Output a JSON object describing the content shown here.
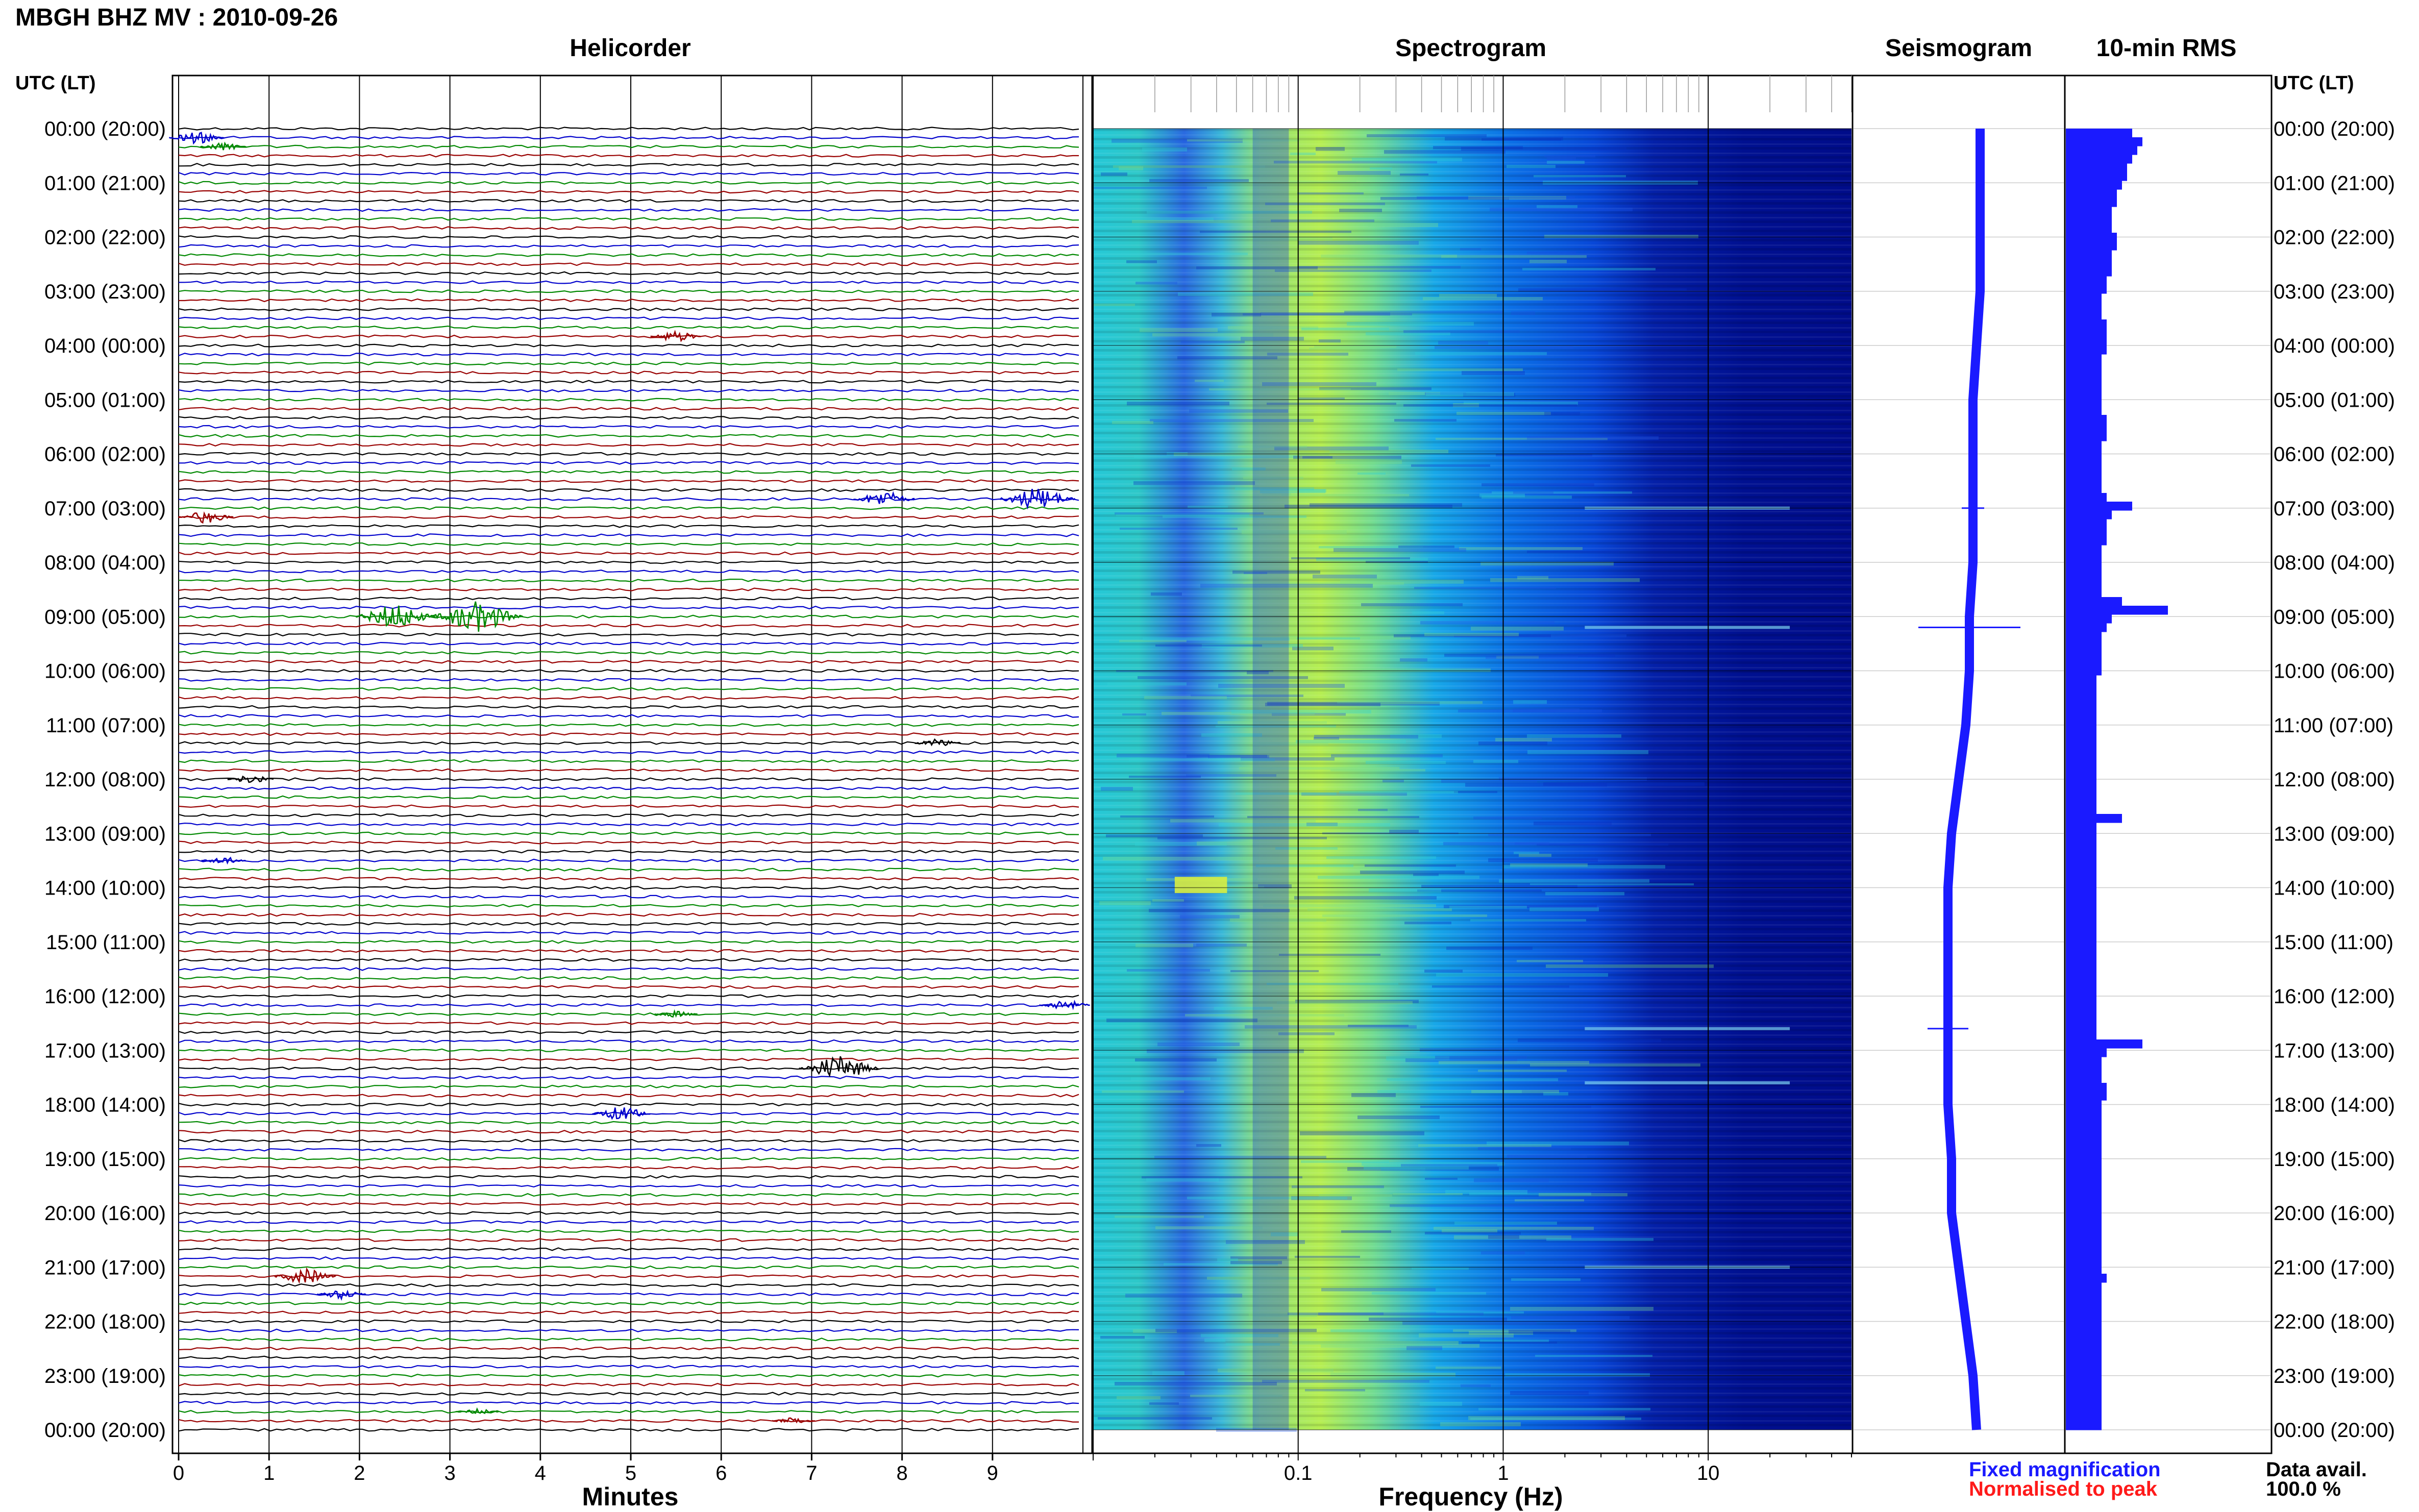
{
  "header": {
    "title": "MBGH BHZ MV : 2010-09-26",
    "utc_label": "UTC (LT)"
  },
  "panels": {
    "helicorder": "Helicorder",
    "spectrogram": "Spectrogram",
    "seismogram": "Seismogram",
    "rms": "10-min RMS"
  },
  "time_labels": [
    "00:00 (20:00)",
    "01:00 (21:00)",
    "02:00 (22:00)",
    "03:00 (23:00)",
    "04:00 (00:00)",
    "05:00 (01:00)",
    "06:00 (02:00)",
    "07:00 (03:00)",
    "08:00 (04:00)",
    "09:00 (05:00)",
    "10:00 (06:00)",
    "11:00 (07:00)",
    "12:00 (08:00)",
    "13:00 (09:00)",
    "14:00 (10:00)",
    "15:00 (11:00)",
    "16:00 (12:00)",
    "17:00 (13:00)",
    "18:00 (14:00)",
    "19:00 (15:00)",
    "20:00 (16:00)",
    "21:00 (17:00)",
    "22:00 (18:00)",
    "23:00 (19:00)",
    "00:00 (20:00)"
  ],
  "legend": {
    "fixed": "Fixed magnification",
    "normalised": "Normalised to peak",
    "fixed_color": "#1a1aff",
    "normalised_color": "#ff1a1a"
  },
  "data_avail": {
    "label": "Data avail.",
    "value": "100.0 %"
  },
  "chart_data": {
    "type": "helicorder+spectrogram",
    "helicorder": {
      "xlabel": "Minutes",
      "x_ticks": [
        "0",
        "1",
        "2",
        "3",
        "4",
        "5",
        "6",
        "7",
        "8",
        "9"
      ],
      "xlim": [
        0,
        10
      ],
      "rows_per_hour": 6,
      "trace_colors": [
        "#000000",
        "#0000cc",
        "#008800",
        "#990000"
      ],
      "events": [
        {
          "row": 1,
          "minute": 0.2,
          "amp": 1.2
        },
        {
          "row": 2,
          "minute": 0.5,
          "amp": 0.8
        },
        {
          "row": 23,
          "minute": 5.5,
          "amp": 1.0
        },
        {
          "row": 41,
          "minute": 7.8,
          "amp": 1.5
        },
        {
          "row": 41,
          "minute": 9.5,
          "amp": 2.2
        },
        {
          "row": 43,
          "minute": 0.3,
          "amp": 1.2
        },
        {
          "row": 54,
          "minute": 2.4,
          "amp": 2.4
        },
        {
          "row": 54,
          "minute": 3.3,
          "amp": 3.0
        },
        {
          "row": 68,
          "minute": 8.4,
          "amp": 0.8
        },
        {
          "row": 72,
          "minute": 0.8,
          "amp": 0.8
        },
        {
          "row": 81,
          "minute": 0.5,
          "amp": 0.7
        },
        {
          "row": 97,
          "minute": 9.8,
          "amp": 1.0
        },
        {
          "row": 98,
          "minute": 5.5,
          "amp": 0.6
        },
        {
          "row": 104,
          "minute": 7.3,
          "amp": 2.4
        },
        {
          "row": 109,
          "minute": 4.9,
          "amp": 1.4
        },
        {
          "row": 127,
          "minute": 1.4,
          "amp": 1.5
        },
        {
          "row": 129,
          "minute": 1.8,
          "amp": 0.9
        },
        {
          "row": 142,
          "minute": 3.3,
          "amp": 0.6
        },
        {
          "row": 143,
          "minute": 6.8,
          "amp": 0.6
        }
      ]
    },
    "spectrogram": {
      "xlabel": "Frequency (Hz)",
      "scale": "log",
      "xlim": [
        0.01,
        50
      ],
      "x_ticks": [
        0.1,
        1,
        10
      ],
      "x_tick_labels": [
        "0.1",
        "1",
        "10"
      ]
    },
    "seismogram": {
      "offset_by_hour": [
        0.6,
        0.6,
        0.6,
        0.6,
        0.5,
        0.4,
        0.4,
        0.4,
        0.4,
        0.3,
        0.3,
        0.2,
        0.0,
        -0.2,
        -0.3,
        -0.3,
        -0.3,
        -0.3,
        -0.3,
        -0.2,
        -0.2,
        0.0,
        0.2,
        0.4,
        0.5
      ],
      "spikes_hour": [
        9.2,
        16.6,
        7.0
      ]
    },
    "rms": {
      "values": [
        1.3,
        1.5,
        1.4,
        1.3,
        1.2,
        1.2,
        1.1,
        1.0,
        1.0,
        0.9,
        0.9,
        0.9,
        1.0,
        1.0,
        0.9,
        0.9,
        0.9,
        0.8,
        0.8,
        0.7,
        0.7,
        0.7,
        0.8,
        0.8,
        0.8,
        0.8,
        0.7,
        0.7,
        0.7,
        0.7,
        0.7,
        0.7,
        0.7,
        0.8,
        0.8,
        0.8,
        0.7,
        0.7,
        0.7,
        0.7,
        0.7,
        0.7,
        0.8,
        1.3,
        0.9,
        0.8,
        0.8,
        0.8,
        0.7,
        0.7,
        0.7,
        0.7,
        0.7,
        0.7,
        1.1,
        2.0,
        0.9,
        0.8,
        0.7,
        0.7,
        0.7,
        0.7,
        0.7,
        0.6,
        0.6,
        0.6,
        0.6,
        0.6,
        0.6,
        0.6,
        0.6,
        0.6,
        0.6,
        0.6,
        0.6,
        0.6,
        0.6,
        0.6,
        0.6,
        1.1,
        0.6,
        0.6,
        0.6,
        0.6,
        0.6,
        0.6,
        0.6,
        0.6,
        0.6,
        0.6,
        0.6,
        0.6,
        0.6,
        0.6,
        0.6,
        0.6,
        0.6,
        0.6,
        0.6,
        0.6,
        0.6,
        0.6,
        0.6,
        0.6,
        0.6,
        1.5,
        0.8,
        0.7,
        0.7,
        0.7,
        0.8,
        0.8,
        0.7,
        0.7,
        0.7,
        0.7,
        0.7,
        0.7,
        0.7,
        0.7,
        0.7,
        0.7,
        0.7,
        0.7,
        0.7,
        0.7,
        0.7,
        0.7,
        0.7,
        0.7,
        0.7,
        0.7,
        0.8,
        0.7,
        0.7,
        0.7,
        0.7,
        0.7,
        0.7,
        0.7,
        0.7,
        0.7,
        0.7,
        0.7,
        0.7,
        0.7,
        0.7,
        0.7,
        0.7,
        0.7
      ],
      "max": 4
    }
  }
}
